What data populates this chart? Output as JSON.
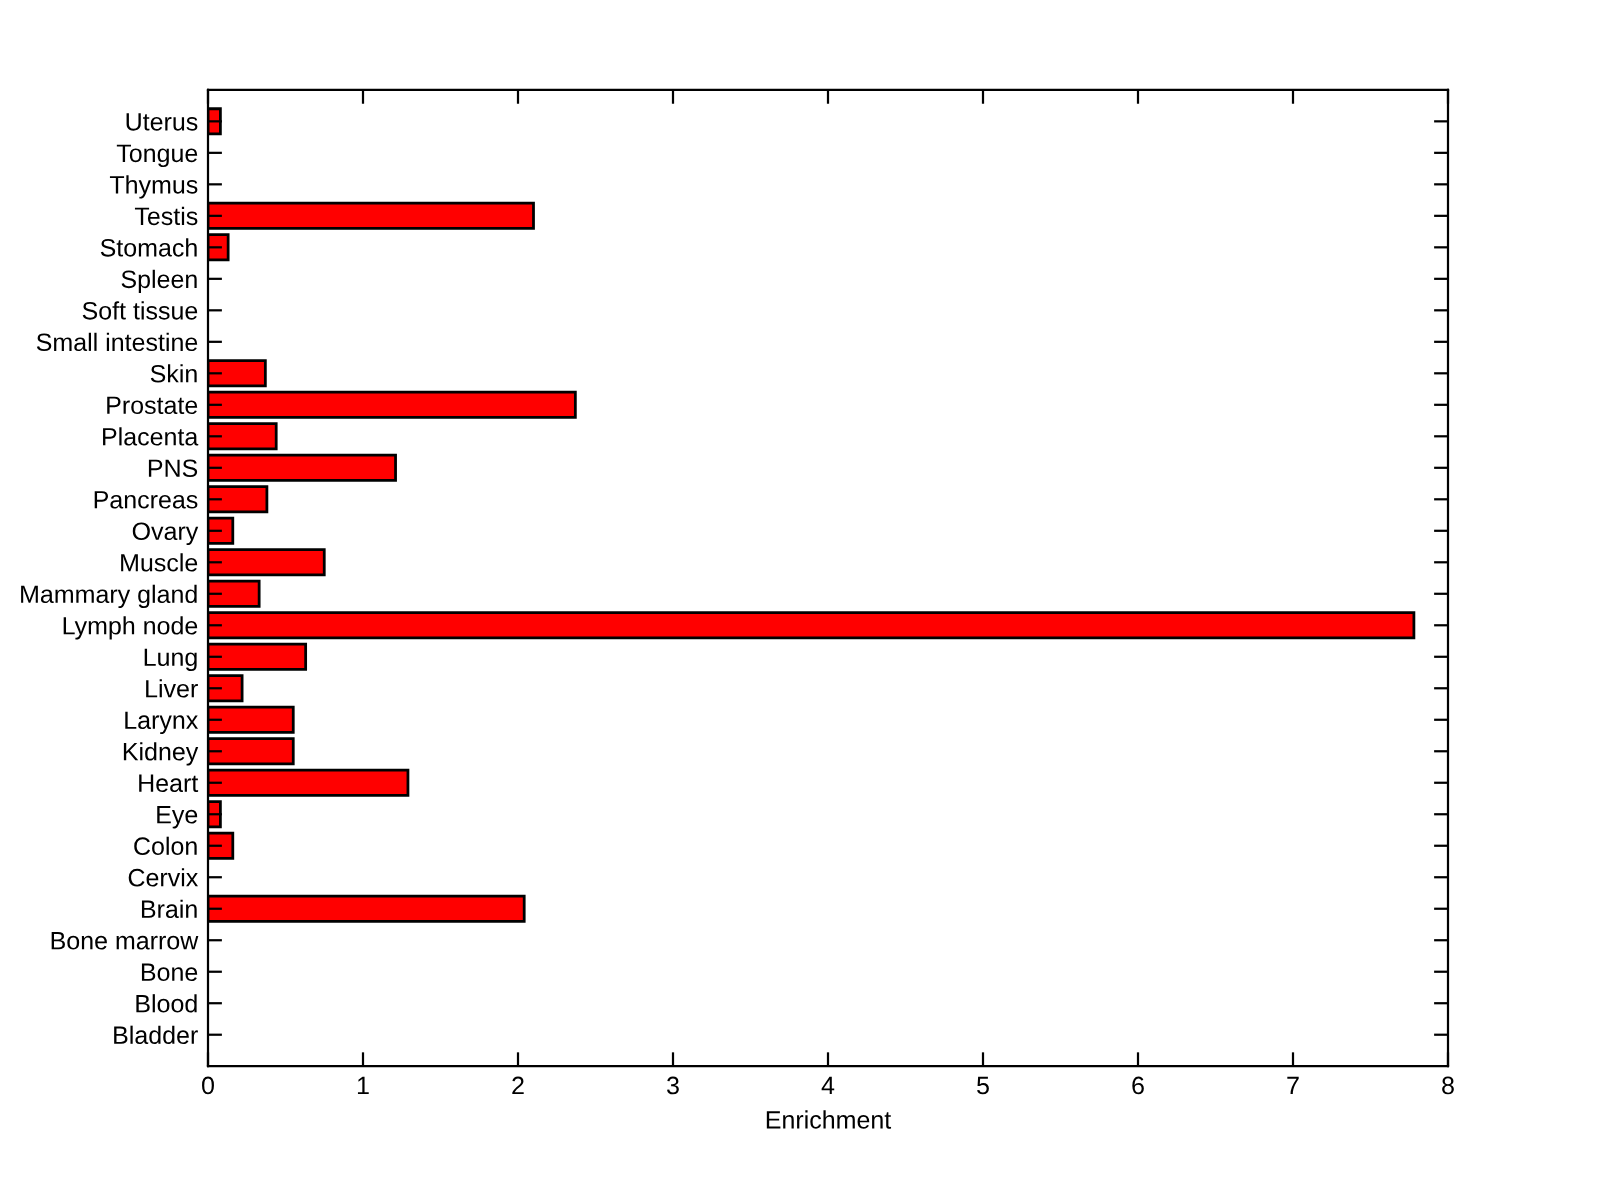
{
  "chart_data": {
    "type": "bar",
    "orientation": "horizontal",
    "xlabel": "Enrichment",
    "categories": [
      "Uterus",
      "Tongue",
      "Thymus",
      "Testis",
      "Stomach",
      "Spleen",
      "Soft tissue",
      "Small intestine",
      "Skin",
      "Prostate",
      "Placenta",
      "PNS",
      "Pancreas",
      "Ovary",
      "Muscle",
      "Mammary gland",
      "Lymph node",
      "Lung",
      "Liver",
      "Larynx",
      "Kidney",
      "Heart",
      "Eye",
      "Colon",
      "Cervix",
      "Brain",
      "Bone marrow",
      "Bone",
      "Blood",
      "Bladder"
    ],
    "values": [
      0.08,
      0,
      0,
      2.1,
      0.13,
      0,
      0,
      0,
      0.37,
      2.37,
      0.44,
      1.21,
      0.38,
      0.16,
      0.75,
      0.33,
      7.78,
      0.63,
      0.22,
      0.55,
      0.55,
      1.29,
      0.08,
      0.16,
      0,
      2.04,
      0,
      0,
      0,
      0
    ],
    "color": "#ff0000",
    "xlim": [
      0,
      8
    ],
    "xticks": [
      0,
      1,
      2,
      3,
      4,
      5,
      6,
      7,
      8
    ],
    "grid": false
  }
}
